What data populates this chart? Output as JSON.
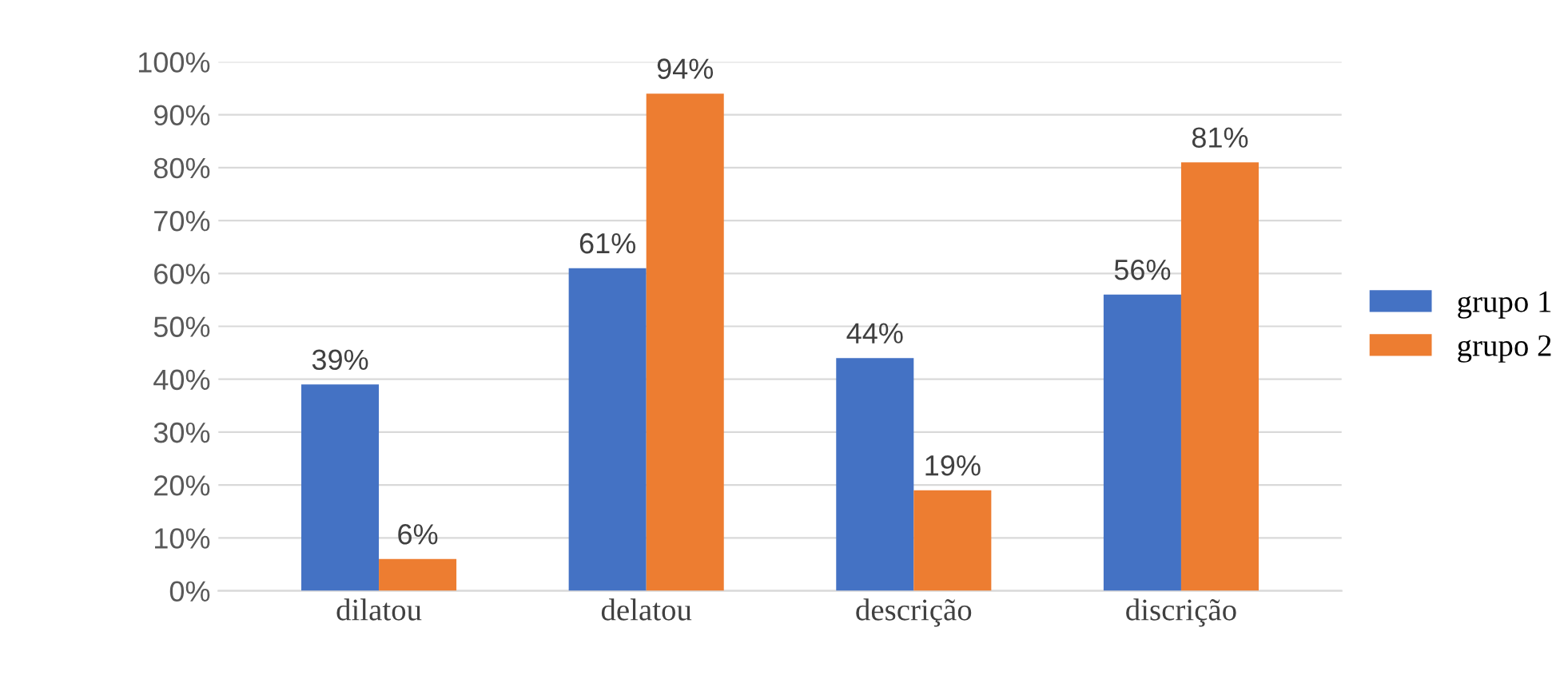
{
  "chart_data": {
    "type": "bar",
    "categories": [
      "dilatou",
      "delatou",
      "descrição",
      "discrição"
    ],
    "series": [
      {
        "name": "grupo 1",
        "color": "#4472c4",
        "values": [
          39,
          61,
          44,
          56
        ],
        "value_labels": [
          "39%",
          "61%",
          "44%",
          "56%"
        ]
      },
      {
        "name": "grupo 2",
        "color": "#ed7d31",
        "values": [
          6,
          94,
          19,
          81
        ],
        "value_labels": [
          "6%",
          "94%",
          "19%",
          "81%"
        ]
      }
    ],
    "ylim": [
      0,
      100
    ],
    "yticks": [
      {
        "value": 0,
        "label": "0%"
      },
      {
        "value": 10,
        "label": "10%"
      },
      {
        "value": 20,
        "label": "20%"
      },
      {
        "value": 30,
        "label": "30%"
      },
      {
        "value": 40,
        "label": "40%"
      },
      {
        "value": 50,
        "label": "50%"
      },
      {
        "value": 60,
        "label": "60%"
      },
      {
        "value": 70,
        "label": "70%"
      },
      {
        "value": 80,
        "label": "80%"
      },
      {
        "value": 90,
        "label": "90%"
      },
      {
        "value": 100,
        "label": "100%"
      }
    ],
    "grid": "y",
    "legend": "right"
  }
}
